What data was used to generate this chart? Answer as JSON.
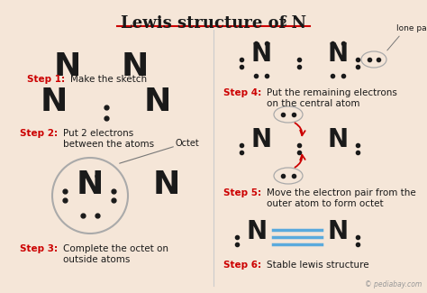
{
  "bg_color": "#f5e6d8",
  "step_color": "#cc0000",
  "N_color": "#1a1a1a",
  "dot_color": "#1a1a1a",
  "triple_bond_color": "#5aaadd",
  "divider_color": "#cccccc",
  "octet_line_color": "#888888",
  "watermark": "© pediabay.com",
  "octet_label": "Octet",
  "lone_pair_label": "lone pair",
  "step1_label": "Step 1:",
  "step1_text": "Make the sketch",
  "step2_label": "Step 2:",
  "step2_text": "Put 2 electrons\nbetween the atoms",
  "step3_label": "Step 3:",
  "step3_text": "Complete the octet on\noutside atoms",
  "step4_label": "Step 4:",
  "step4_text": "Put the remaining electrons\non the central atom",
  "step5_label": "Step 5:",
  "step5_text": "Move the electron pair from the\nouter atom to form octet",
  "step6_label": "Step 6:",
  "step6_text": "Stable lewis structure"
}
